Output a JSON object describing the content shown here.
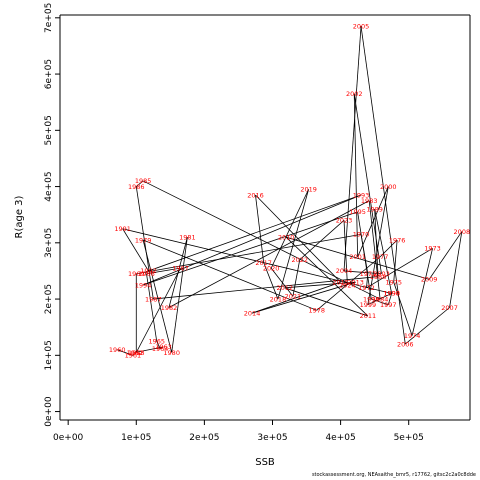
{
  "chart_data": {
    "type": "line",
    "xlabel": "SSB",
    "ylabel": "R(age 3)",
    "xlim": [
      -12000,
      590000
    ],
    "ylim": [
      -15000,
      705000
    ],
    "x_ticks": [
      0,
      100000,
      200000,
      300000,
      400000,
      500000
    ],
    "x_tick_labels": [
      "0e+00",
      "1e+05",
      "2e+05",
      "3e+05",
      "4e+05",
      "5e+05"
    ],
    "y_ticks": [
      0,
      100000,
      200000,
      300000,
      400000,
      500000,
      600000,
      700000
    ],
    "y_tick_labels": [
      "0e+00",
      "1e+05",
      "2e+05",
      "3e+05",
      "4e+05",
      "5e+05",
      "6e+05",
      "7e+05"
    ],
    "line_color": "#000000",
    "label_color": "#ff0000",
    "footer": "stockassessment.org, NEAsaithe_bmr5, r17762, gitsc2c2a0c8dde",
    "points": [
      {
        "year": "1960",
        "x": 72000,
        "y": 110000
      },
      {
        "year": "1961",
        "x": 95000,
        "y": 100000
      },
      {
        "year": "1962",
        "x": 98000,
        "y": 105000
      },
      {
        "year": "1963",
        "x": 140000,
        "y": 115000
      },
      {
        "year": "1964",
        "x": 135000,
        "y": 112000
      },
      {
        "year": "1965",
        "x": 130000,
        "y": 125000
      },
      {
        "year": "1966",
        "x": 115000,
        "y": 245000
      },
      {
        "year": "1967",
        "x": 165000,
        "y": 255000
      },
      {
        "year": "1968",
        "x": 100000,
        "y": 105000
      },
      {
        "year": "1969",
        "x": 100000,
        "y": 245000
      },
      {
        "year": "1970",
        "x": 430000,
        "y": 315000
      },
      {
        "year": "1971",
        "x": 440000,
        "y": 245000
      },
      {
        "year": "1972",
        "x": 438000,
        "y": 220000
      },
      {
        "year": "1973",
        "x": 535000,
        "y": 290000
      },
      {
        "year": "1974",
        "x": 505000,
        "y": 135000
      },
      {
        "year": "1975",
        "x": 478000,
        "y": 230000
      },
      {
        "year": "1976",
        "x": 483000,
        "y": 305000
      },
      {
        "year": "1977",
        "x": 458000,
        "y": 275000
      },
      {
        "year": "1978",
        "x": 365000,
        "y": 180000
      },
      {
        "year": "1979",
        "x": 110000,
        "y": 305000
      },
      {
        "year": "1980",
        "x": 152000,
        "y": 105000
      },
      {
        "year": "1981",
        "x": 175000,
        "y": 310000
      },
      {
        "year": "1982",
        "x": 148000,
        "y": 185000
      },
      {
        "year": "1983",
        "x": 442000,
        "y": 375000
      },
      {
        "year": "1984",
        "x": 458000,
        "y": 200000
      },
      {
        "year": "1985",
        "x": 110000,
        "y": 410000
      },
      {
        "year": "1986",
        "x": 100000,
        "y": 400000
      },
      {
        "year": "1987",
        "x": 125000,
        "y": 200000
      },
      {
        "year": "1988",
        "x": 455000,
        "y": 240000
      },
      {
        "year": "1989",
        "x": 450000,
        "y": 360000
      },
      {
        "year": "1990",
        "x": 475000,
        "y": 210000
      },
      {
        "year": "1991",
        "x": 80000,
        "y": 325000
      },
      {
        "year": "1992",
        "x": 118000,
        "y": 250000
      },
      {
        "year": "1993",
        "x": 430000,
        "y": 385000
      },
      {
        "year": "1994",
        "x": 110000,
        "y": 225000
      },
      {
        "year": "1995",
        "x": 425000,
        "y": 355000
      },
      {
        "year": "1996",
        "x": 445000,
        "y": 200000
      },
      {
        "year": "1997",
        "x": 470000,
        "y": 190000
      },
      {
        "year": "1998",
        "x": 475000,
        "y": 210000
      },
      {
        "year": "1999",
        "x": 440000,
        "y": 190000
      },
      {
        "year": "2000",
        "x": 470000,
        "y": 400000
      },
      {
        "year": "2001",
        "x": 425000,
        "y": 275000
      },
      {
        "year": "2002",
        "x": 420000,
        "y": 565000
      },
      {
        "year": "2003",
        "x": 460000,
        "y": 245000
      },
      {
        "year": "2004",
        "x": 405000,
        "y": 250000
      },
      {
        "year": "2005",
        "x": 430000,
        "y": 685000
      },
      {
        "year": "2006",
        "x": 495000,
        "y": 120000
      },
      {
        "year": "2007",
        "x": 560000,
        "y": 185000
      },
      {
        "year": "2008",
        "x": 578000,
        "y": 320000
      },
      {
        "year": "2009",
        "x": 530000,
        "y": 235000
      },
      {
        "year": "2010",
        "x": 320000,
        "y": 310000
      },
      {
        "year": "2011",
        "x": 440000,
        "y": 170000
      },
      {
        "year": "2012",
        "x": 318000,
        "y": 220000
      },
      {
        "year": "2013",
        "x": 422000,
        "y": 230000
      },
      {
        "year": "2014",
        "x": 270000,
        "y": 175000
      },
      {
        "year": "2015",
        "x": 400000,
        "y": 230000
      },
      {
        "year": "2016",
        "x": 275000,
        "y": 385000
      },
      {
        "year": "2017",
        "x": 287000,
        "y": 265000
      },
      {
        "year": "2018",
        "x": 308000,
        "y": 200000
      },
      {
        "year": "2019",
        "x": 353000,
        "y": 395000
      },
      {
        "year": "2020",
        "x": 298000,
        "y": 255000
      },
      {
        "year": "2021",
        "x": 330000,
        "y": 205000
      },
      {
        "year": "2022",
        "x": 340000,
        "y": 270000
      },
      {
        "year": "2023",
        "x": 405000,
        "y": 340000
      },
      {
        "year": "2024",
        "x": 410000,
        "y": 225000
      }
    ],
    "path_order": [
      "1960",
      "1961",
      "1962",
      "1963",
      "1964",
      "1965",
      "1966",
      "1967",
      "1968",
      "1969",
      "1970",
      "1971",
      "1972",
      "1973",
      "1974",
      "1975",
      "1976",
      "1977",
      "1978",
      "1979",
      "1980",
      "1981",
      "1982",
      "1983",
      "1984",
      "1985",
      "1986",
      "1987",
      "1988",
      "1989",
      "1990",
      "1991",
      "1992",
      "1993",
      "1994",
      "1995",
      "1996",
      "1997",
      "1998",
      "1999",
      "2000",
      "2001",
      "2002",
      "2003",
      "2004",
      "2005",
      "2006",
      "2007",
      "2008",
      "2009",
      "2010",
      "2011",
      "2012",
      "2013",
      "2014",
      "2015",
      "2016",
      "2017",
      "2018",
      "2019",
      "2020",
      "2021",
      "2022",
      "2023",
      "2024"
    ]
  }
}
